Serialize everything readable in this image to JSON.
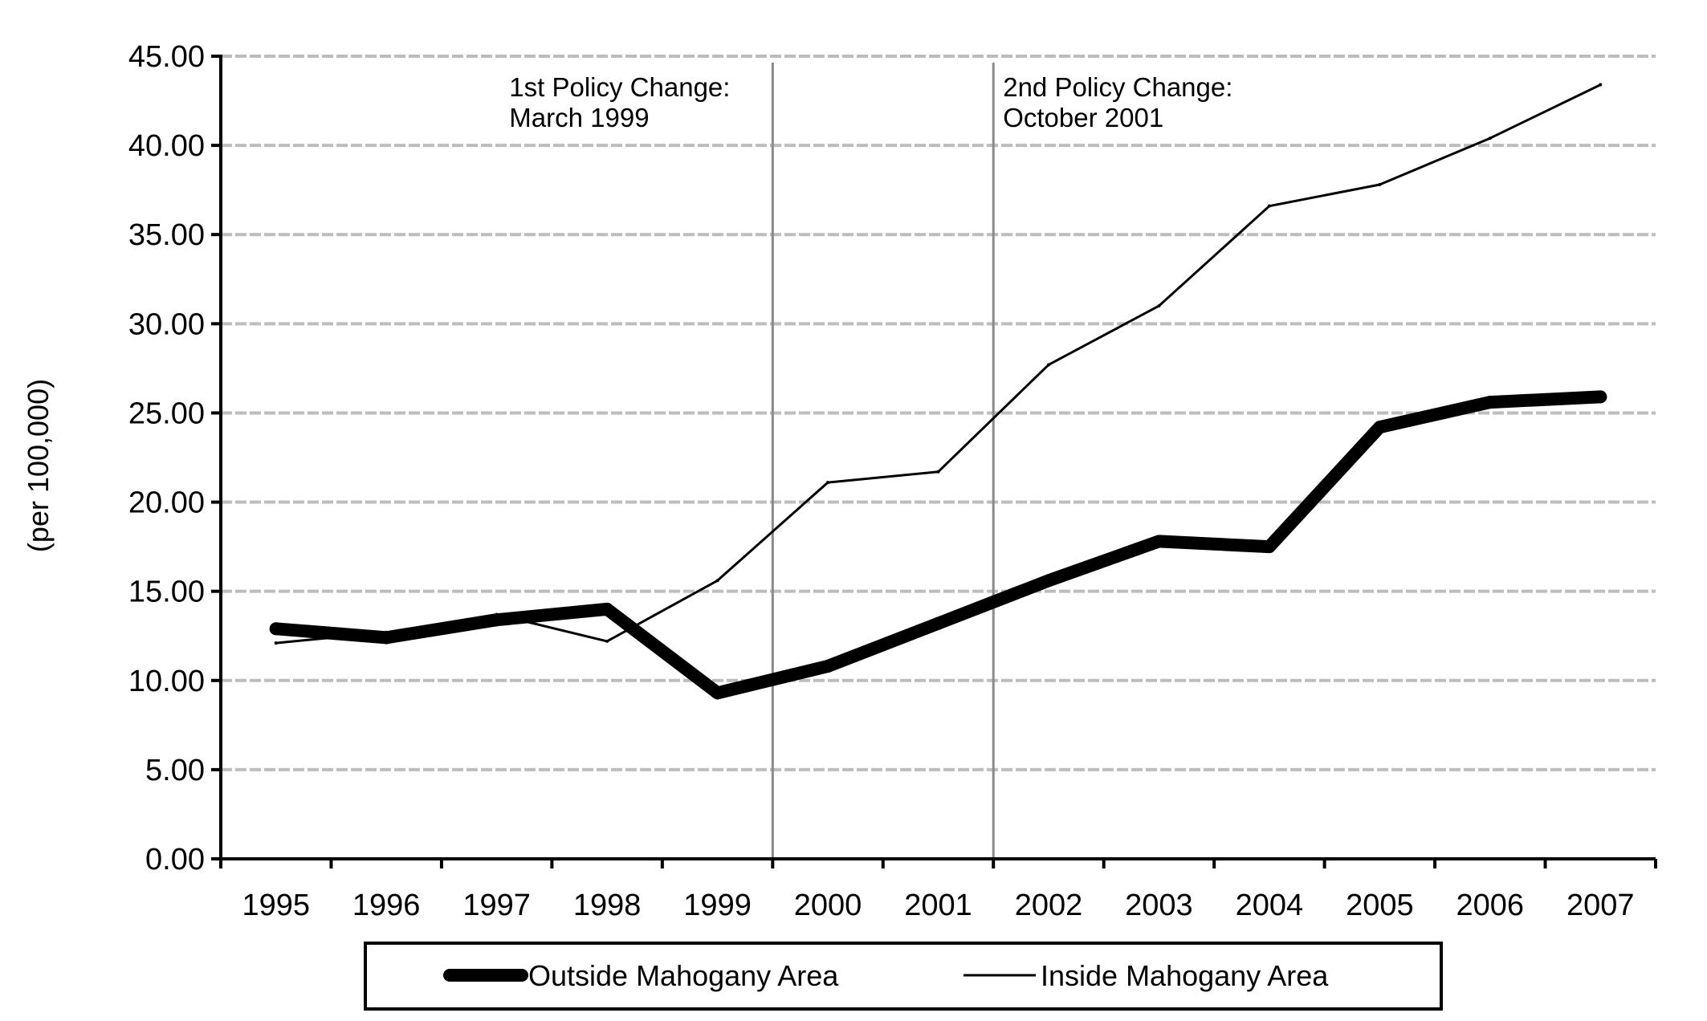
{
  "chart_data": {
    "type": "line",
    "title": "",
    "xlabel": "",
    "ylabel": "(per 100,000)",
    "ylim": [
      0,
      45
    ],
    "yticks": [
      "0.00",
      "5.00",
      "10.00",
      "15.00",
      "20.00",
      "25.00",
      "30.00",
      "35.00",
      "40.00",
      "45.00"
    ],
    "x": [
      "1995",
      "1996",
      "1997",
      "1998",
      "1999",
      "2000",
      "2001",
      "2002",
      "2003",
      "2004",
      "2005",
      "2006",
      "2007"
    ],
    "grid": true,
    "legend_position": "bottom",
    "series": [
      {
        "name": "Outside Mahogany Area",
        "style": "thick",
        "values": [
          12.9,
          12.4,
          13.4,
          14.0,
          9.3,
          10.8,
          13.2,
          15.6,
          17.8,
          17.5,
          24.2,
          25.6,
          25.9
        ]
      },
      {
        "name": "Inside Mahogany Area",
        "style": "thin",
        "values": [
          12.1,
          12.7,
          13.7,
          12.2,
          15.6,
          21.1,
          21.7,
          27.7,
          31.0,
          36.6,
          37.8,
          40.4,
          43.4
        ]
      }
    ],
    "annotations": [
      {
        "line1": "1st Policy Change:",
        "line2": "March 1999",
        "x_between": [
          "1999",
          "2000"
        ]
      },
      {
        "line1": "2nd Policy Change:",
        "line2": "October 2001",
        "x_between": [
          "2001",
          "2002"
        ]
      }
    ]
  },
  "colors": {
    "line": "#000000",
    "grid": "#bdbdbd",
    "policy_line": "#8a8a8a",
    "axis": "#000000"
  }
}
